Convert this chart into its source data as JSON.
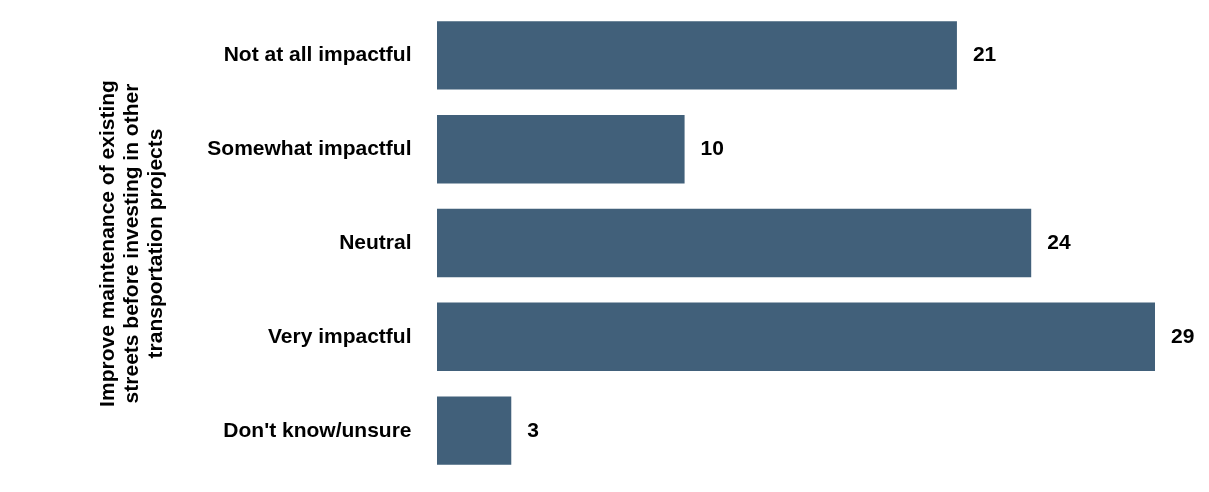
{
  "chart_data": {
    "type": "bar",
    "orientation": "horizontal",
    "ylabel": "Improve maintenance of existing streets before investing in other transportation projects",
    "categories": [
      "Not at all impactful",
      "Somewhat impactful",
      "Neutral",
      "Very impactful",
      "Don't know/unsure"
    ],
    "values": [
      21,
      10,
      24,
      29,
      3
    ],
    "color": "#41607a",
    "data_labels": true,
    "tick_labels": "y"
  }
}
